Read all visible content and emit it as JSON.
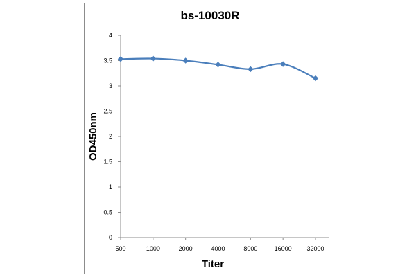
{
  "chart_data": {
    "type": "line",
    "title": "bs-10030R",
    "xlabel": "Titer",
    "ylabel": "OD450nm",
    "categories": [
      "500",
      "1000",
      "2000",
      "4000",
      "8000",
      "16000",
      "32000"
    ],
    "series": [
      {
        "name": "bs-10030R",
        "values": [
          3.53,
          3.54,
          3.5,
          3.42,
          3.33,
          3.43,
          3.15
        ]
      }
    ],
    "ylim": [
      0,
      4
    ],
    "yticks": [
      "0",
      "0.5",
      "1",
      "1.5",
      "2",
      "2.5",
      "3",
      "3.5",
      "4"
    ],
    "grid": false,
    "legend": "none",
    "line_color": "#4a7ebb"
  }
}
